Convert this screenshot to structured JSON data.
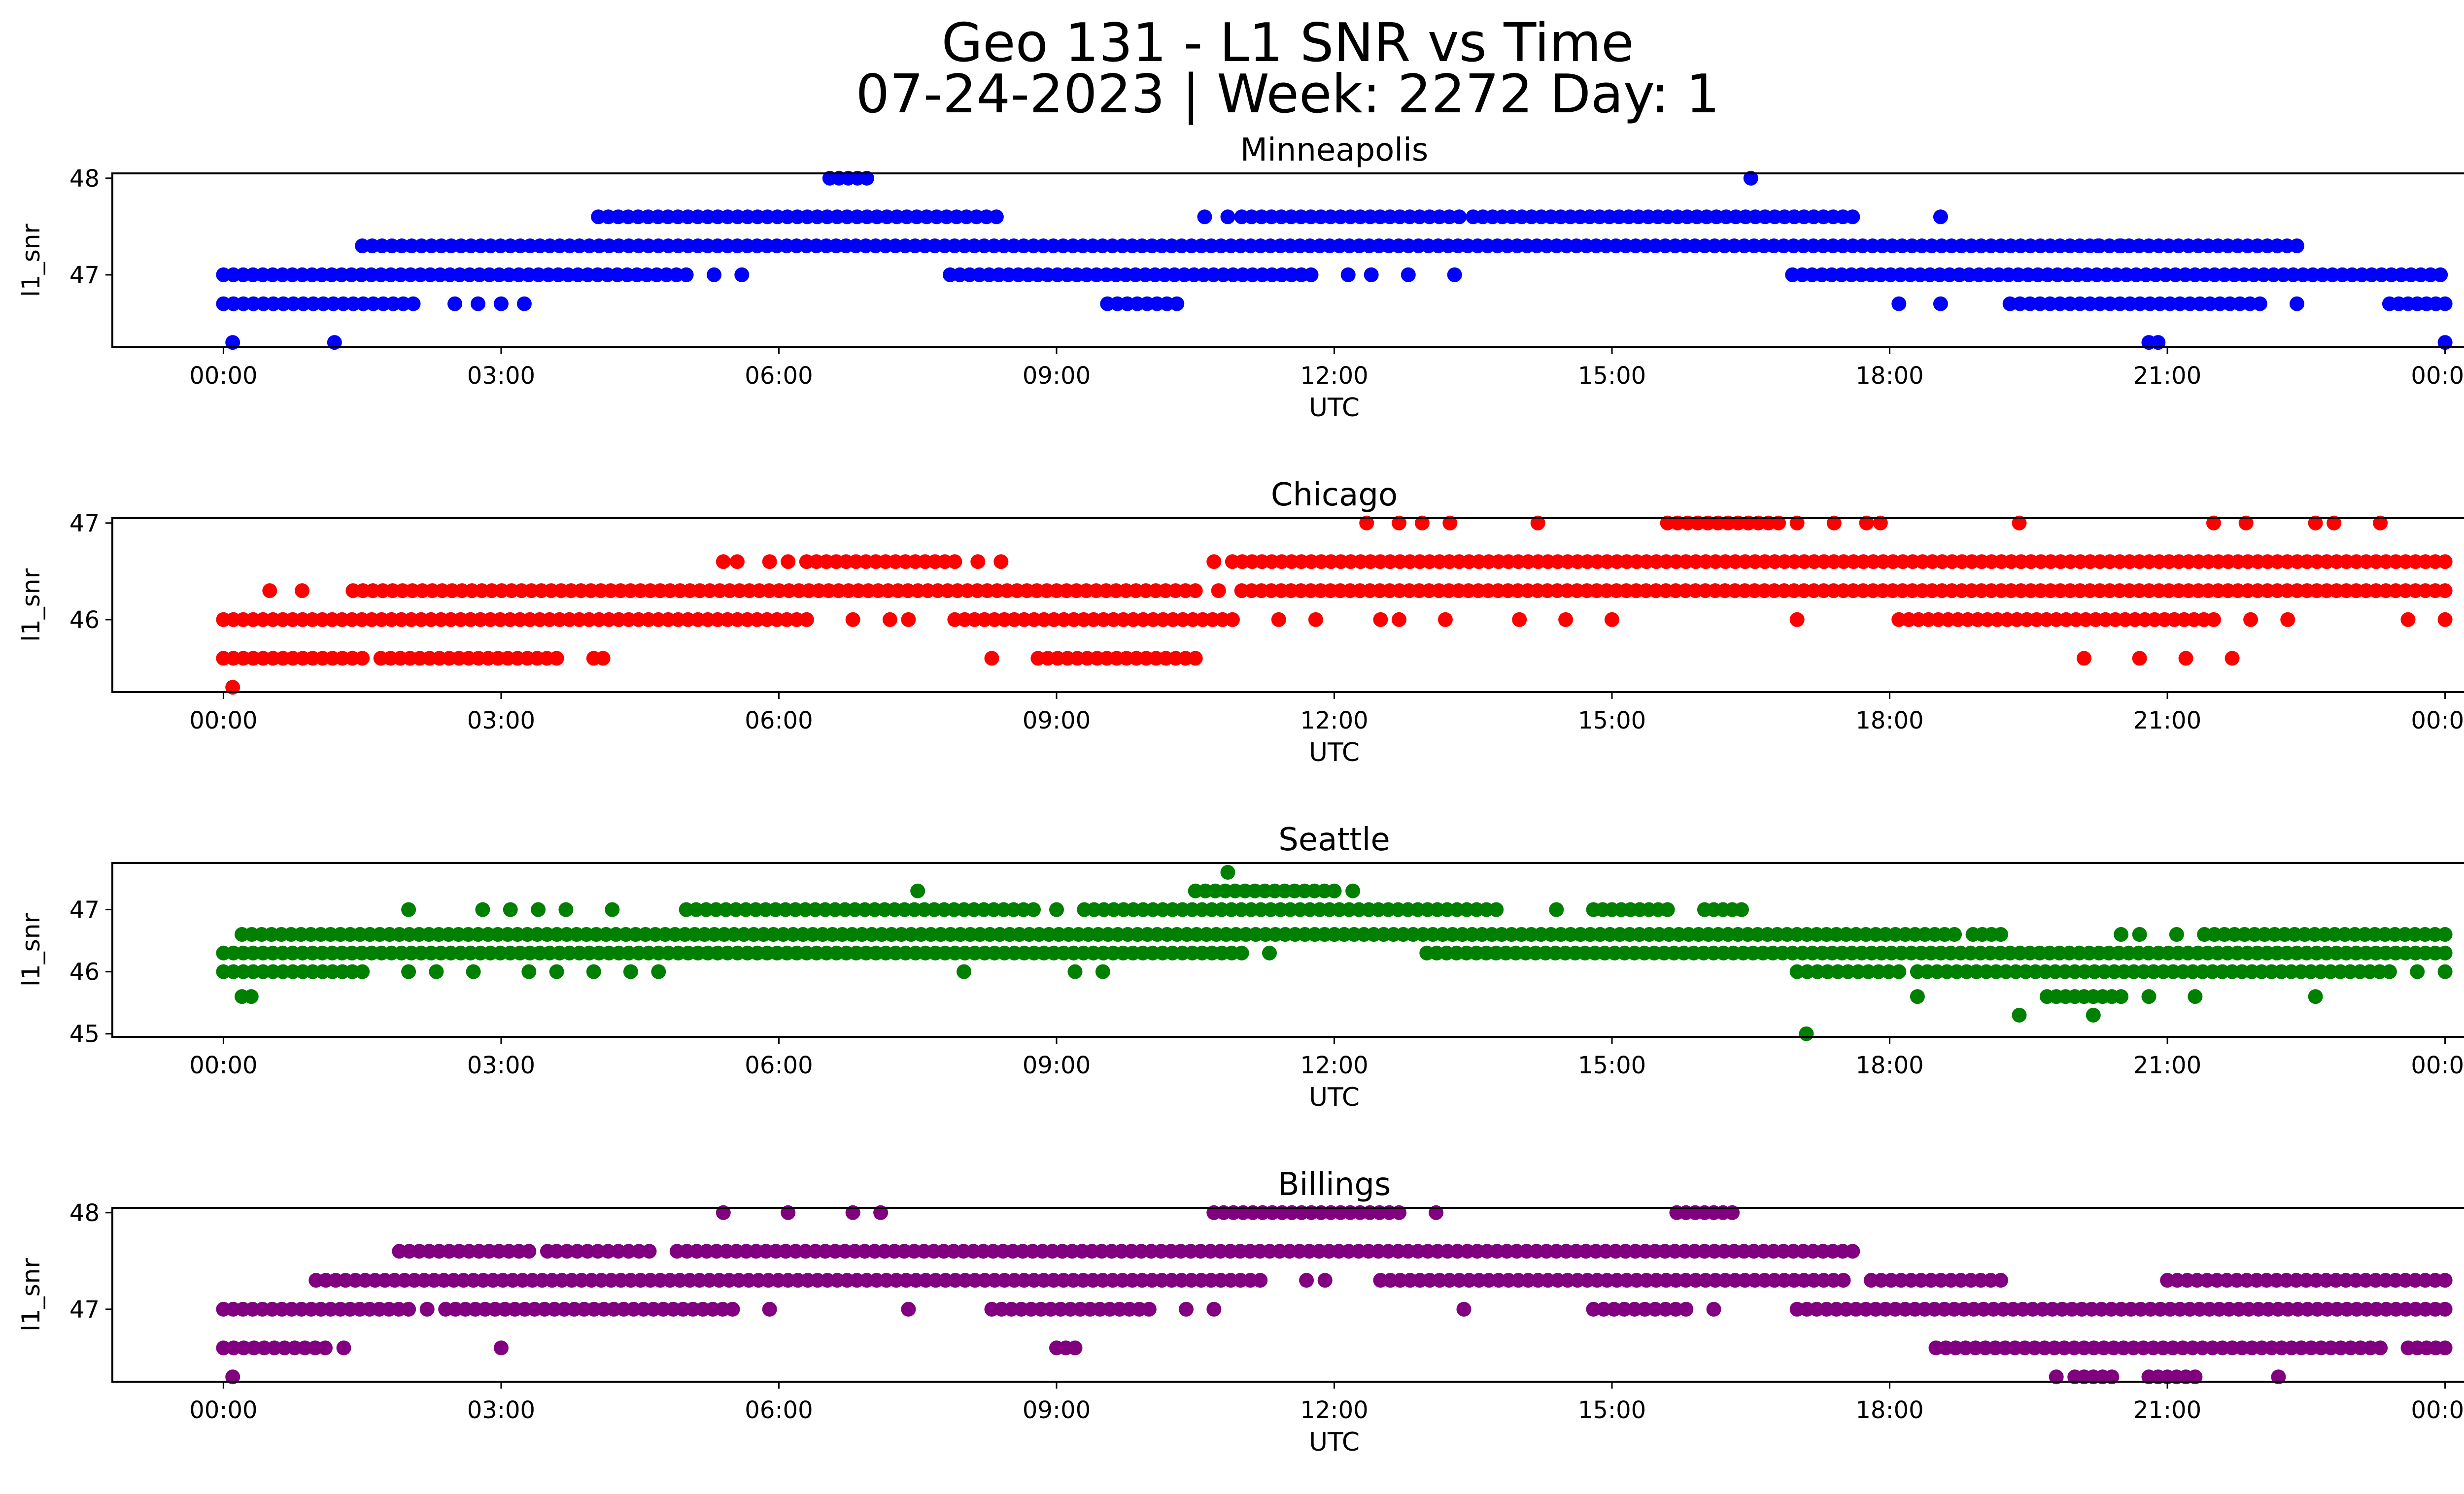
{
  "figure": {
    "title_line1": "Geo 131 - L1 SNR vs Time",
    "title_line2": "07-24-2023 | Week: 2272 Day: 1"
  },
  "chart_data": [
    {
      "type": "scatter",
      "title": "Minneapolis",
      "xlabel": "UTC",
      "ylabel": "l1_snr",
      "color": "#0000ff",
      "xticks": [
        "00:00",
        "03:00",
        "06:00",
        "09:00",
        "12:00",
        "15:00",
        "18:00",
        "21:00",
        "00:00"
      ],
      "xlim_hours": [
        -1.2,
        25.2
      ],
      "yticks": [
        47,
        48
      ],
      "ylim": [
        46.25,
        48.05
      ],
      "grid": false,
      "levels": [
        {
          "y": 48.0,
          "segments": [
            [
              6.55,
              6.95
            ]
          ],
          "points": [
            16.5
          ]
        },
        {
          "y": 47.6,
          "segments": [
            [
              4.05,
              8.35
            ],
            [
              11.0,
              13.35
            ],
            [
              13.5,
              17.6
            ]
          ],
          "points": [
            10.6,
            10.85,
            18.55
          ]
        },
        {
          "y": 47.3,
          "segments": [
            [
              1.5,
              22.4
            ]
          ],
          "points": [
            20.25,
            20.5
          ]
        },
        {
          "y": 47.0,
          "segments": [
            [
              0.0,
              5.0
            ],
            [
              7.85,
              11.75
            ],
            [
              16.95,
              23.95
            ]
          ],
          "points": [
            5.3,
            5.6,
            12.15,
            12.4,
            12.8,
            13.3
          ]
        },
        {
          "y": 46.7,
          "segments": [
            [
              0.0,
              2.05
            ],
            [
              9.55,
              10.3
            ],
            [
              19.3,
              22.0
            ],
            [
              23.4,
              24.0
            ]
          ],
          "points": [
            2.5,
            2.75,
            3.0,
            3.25,
            18.1,
            18.55,
            22.4
          ]
        },
        {
          "y": 46.3,
          "segments": [
            [
              20.8,
              20.9
            ]
          ],
          "points": [
            0.1,
            1.2,
            24.0
          ]
        }
      ]
    },
    {
      "type": "scatter",
      "title": "Chicago",
      "xlabel": "UTC",
      "ylabel": "l1_snr",
      "color": "#ff0000",
      "xticks": [
        "00:00",
        "03:00",
        "06:00",
        "09:00",
        "12:00",
        "15:00",
        "18:00",
        "21:00",
        "00:00"
      ],
      "xlim_hours": [
        -1.2,
        25.2
      ],
      "yticks": [
        46,
        47
      ],
      "ylim": [
        45.25,
        47.05
      ],
      "grid": false,
      "levels": [
        {
          "y": 47.0,
          "segments": [
            [
              15.6,
              16.8
            ]
          ],
          "points": [
            12.35,
            12.7,
            12.95,
            13.25,
            14.2,
            17.0,
            17.4,
            17.75,
            17.9,
            19.4,
            21.5,
            21.85,
            22.6,
            22.8,
            23.3
          ]
        },
        {
          "y": 46.6,
          "segments": [
            [
              5.4,
              5.55
            ],
            [
              6.3,
              7.9
            ],
            [
              10.9,
              24.0
            ]
          ],
          "points": [
            5.9,
            6.1,
            8.15,
            8.4,
            10.7
          ]
        },
        {
          "y": 46.3,
          "segments": [
            [
              1.4,
              10.5
            ],
            [
              11.0,
              24.0
            ]
          ],
          "points": [
            0.5,
            0.85,
            10.75
          ]
        },
        {
          "y": 46.0,
          "segments": [
            [
              0.0,
              6.3
            ],
            [
              7.9,
              10.9
            ],
            [
              18.1,
              21.5
            ]
          ],
          "points": [
            6.8,
            7.2,
            7.4,
            11.4,
            11.8,
            12.5,
            12.7,
            13.2,
            14.0,
            14.5,
            15.0,
            17.0,
            21.9,
            22.3,
            23.6,
            24.0
          ]
        },
        {
          "y": 45.6,
          "segments": [
            [
              0.0,
              1.5
            ],
            [
              1.7,
              3.6
            ],
            [
              8.8,
              10.5
            ]
          ],
          "points": [
            4.0,
            4.1,
            8.3,
            20.1,
            20.7,
            21.2,
            21.7
          ]
        },
        {
          "y": 45.3,
          "segments": [],
          "points": [
            0.1
          ]
        }
      ]
    },
    {
      "type": "scatter",
      "title": "Seattle",
      "xlabel": "UTC",
      "ylabel": "l1_snr",
      "color": "#008000",
      "xticks": [
        "00:00",
        "03:00",
        "06:00",
        "09:00",
        "12:00",
        "15:00",
        "18:00",
        "21:00",
        "00:00"
      ],
      "xlim_hours": [
        -1.2,
        25.2
      ],
      "yticks": [
        45,
        46,
        47
      ],
      "ylim": [
        44.95,
        47.75
      ],
      "grid": false,
      "levels": [
        {
          "y": 47.6,
          "segments": [],
          "points": [
            10.85
          ]
        },
        {
          "y": 47.3,
          "segments": [
            [
              10.5,
              12.0
            ]
          ],
          "points": [
            7.5,
            12.2
          ]
        },
        {
          "y": 47.0,
          "segments": [
            [
              5.0,
              8.75
            ],
            [
              9.3,
              13.75
            ],
            [
              14.8,
              15.6
            ],
            [
              16.0,
              16.4
            ]
          ],
          "points": [
            2.0,
            2.8,
            3.1,
            3.4,
            3.7,
            4.2,
            9.0,
            14.4
          ]
        },
        {
          "y": 46.6,
          "segments": [
            [
              0.2,
              18.7
            ],
            [
              18.9,
              19.2
            ],
            [
              21.4,
              24.0
            ]
          ],
          "points": [
            20.5,
            20.7,
            21.1
          ]
        },
        {
          "y": 46.3,
          "segments": [
            [
              0.0,
              11.0
            ],
            [
              13.0,
              24.0
            ]
          ],
          "points": [
            11.3
          ]
        },
        {
          "y": 46.0,
          "segments": [
            [
              0.0,
              1.5
            ],
            [
              17.0,
              18.1
            ],
            [
              18.3,
              23.4
            ]
          ],
          "points": [
            2.0,
            2.3,
            2.7,
            3.3,
            3.6,
            4.0,
            4.4,
            4.7,
            8.0,
            9.2,
            9.5,
            23.7,
            24.0
          ]
        },
        {
          "y": 45.6,
          "segments": [
            [
              19.7,
              20.5
            ]
          ],
          "points": [
            0.2,
            0.3,
            18.3,
            20.8,
            21.3,
            22.6
          ]
        },
        {
          "y": 45.3,
          "segments": [],
          "points": [
            19.4,
            20.2
          ]
        },
        {
          "y": 45.0,
          "segments": [],
          "points": [
            17.1
          ]
        }
      ]
    },
    {
      "type": "scatter",
      "title": "Billings",
      "xlabel": "UTC",
      "ylabel": "l1_snr",
      "color": "#800080",
      "xticks": [
        "00:00",
        "03:00",
        "06:00",
        "09:00",
        "12:00",
        "15:00",
        "18:00",
        "21:00",
        "00:00"
      ],
      "xlim_hours": [
        -1.2,
        25.2
      ],
      "yticks": [
        47,
        48
      ],
      "ylim": [
        46.25,
        48.05
      ],
      "grid": false,
      "levels": [
        {
          "y": 48.0,
          "segments": [
            [
              10.7,
              12.7
            ],
            [
              15.7,
              16.3
            ]
          ],
          "points": [
            5.4,
            6.1,
            6.8,
            7.1,
            13.1
          ]
        },
        {
          "y": 47.6,
          "segments": [
            [
              1.9,
              3.3
            ],
            [
              3.6,
              4.6
            ],
            [
              4.9,
              17.6
            ]
          ],
          "points": [
            3.5
          ]
        },
        {
          "y": 47.3,
          "segments": [
            [
              1.0,
              11.2
            ],
            [
              12.5,
              17.5
            ],
            [
              17.8,
              19.2
            ],
            [
              21.0,
              24.0
            ]
          ],
          "points": [
            11.7,
            11.9
          ]
        },
        {
          "y": 47.0,
          "segments": [
            [
              0.0,
              2.0
            ],
            [
              2.4,
              5.5
            ],
            [
              8.3,
              10.0
            ],
            [
              14.8,
              15.8
            ],
            [
              17.0,
              24.0
            ]
          ],
          "points": [
            2.2,
            5.9,
            7.4,
            10.4,
            10.7,
            13.4,
            16.1
          ]
        },
        {
          "y": 46.6,
          "segments": [
            [
              0.0,
              1.1
            ],
            [
              9.0,
              9.2
            ],
            [
              18.5,
              23.3
            ],
            [
              23.6,
              24.0
            ]
          ],
          "points": [
            1.3,
            3.0
          ]
        },
        {
          "y": 46.3,
          "segments": [
            [
              20.0,
              20.4
            ],
            [
              20.8,
              21.3
            ]
          ],
          "points": [
            0.1,
            19.8,
            22.2
          ]
        }
      ]
    }
  ]
}
